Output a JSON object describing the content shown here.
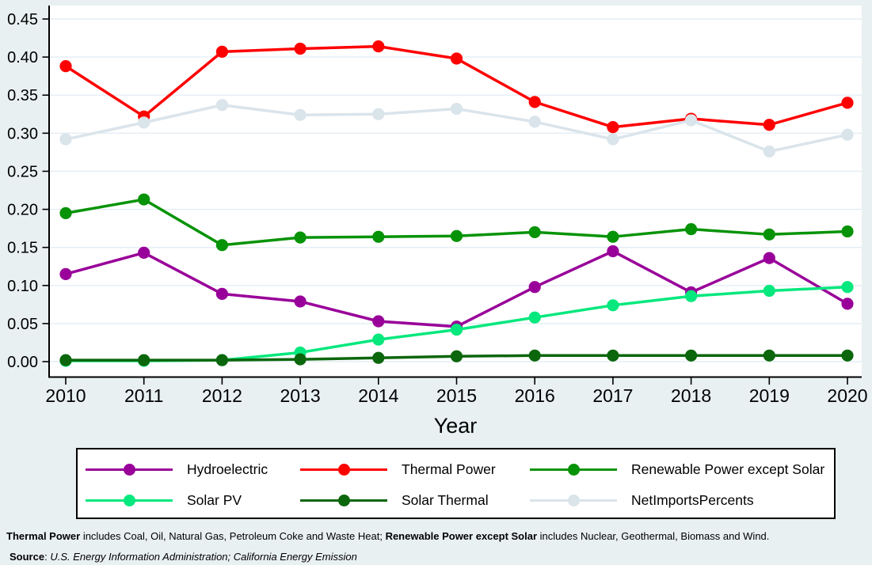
{
  "chart_data": {
    "type": "line",
    "title": "",
    "xlabel": "Year",
    "ylabel": "",
    "x": [
      2010,
      2011,
      2012,
      2013,
      2014,
      2015,
      2016,
      2017,
      2018,
      2019,
      2020
    ],
    "ylim": [
      0,
      0.45
    ],
    "ytick_step": 0.05,
    "ytick_labels": [
      "0.00",
      "0.05",
      "0.10",
      "0.15",
      "0.20",
      "0.25",
      "0.30",
      "0.35",
      "0.40",
      "0.45"
    ],
    "grid": true,
    "legend_position": "bottom-box",
    "series": [
      {
        "name": "Hydroelectric",
        "color": "#990099",
        "values": [
          0.115,
          0.143,
          0.089,
          0.079,
          0.053,
          0.046,
          0.098,
          0.145,
          0.091,
          0.136,
          0.076
        ]
      },
      {
        "name": "Thermal Power",
        "color": "#fe0000",
        "values": [
          0.388,
          0.322,
          0.407,
          0.411,
          0.414,
          0.398,
          0.341,
          0.308,
          0.319,
          0.311,
          0.34
        ]
      },
      {
        "name": "Renewable Power except Solar",
        "color": "#079307",
        "values": [
          0.195,
          0.213,
          0.153,
          0.163,
          0.164,
          0.165,
          0.17,
          0.164,
          0.174,
          0.167,
          0.171
        ]
      },
      {
        "name": "Solar PV",
        "color": "#05e87d",
        "values": [
          0.001,
          0.001,
          0.002,
          0.012,
          0.029,
          0.042,
          0.058,
          0.074,
          0.086,
          0.093,
          0.098
        ]
      },
      {
        "name": "Solar Thermal",
        "color": "#0c660c",
        "values": [
          0.002,
          0.002,
          0.002,
          0.003,
          0.005,
          0.007,
          0.008,
          0.008,
          0.008,
          0.008,
          0.008
        ]
      },
      {
        "name": "NetImportsPercents",
        "color": "#dae4eb",
        "values": [
          0.292,
          0.314,
          0.337,
          0.324,
          0.325,
          0.332,
          0.315,
          0.292,
          0.317,
          0.276,
          0.298
        ]
      }
    ]
  },
  "notes": {
    "line1": [
      {
        "text": "Thermal Power",
        "bold": true
      },
      {
        "text": " includes Coal, Oil, Natural Gas, Petroleum Coke and Waste Heat; "
      },
      {
        "text": "Renewable Power except Solar",
        "bold": true
      },
      {
        "text": " includes Nuclear, Geothermal, Biomass and Wind."
      }
    ],
    "source": [
      {
        "text": "Source",
        "bold": true
      },
      {
        "text": ": "
      },
      {
        "text": "U.S. Energy Information Administration; California Energy Emission",
        "italic": true
      }
    ]
  },
  "colors": {
    "page_background": "#e9f0f2",
    "plot_background": "#ffffff",
    "gridline": "#e4edf4",
    "axis": "#000000",
    "legend_border": "#000000",
    "legend_background": "#ffffff"
  }
}
